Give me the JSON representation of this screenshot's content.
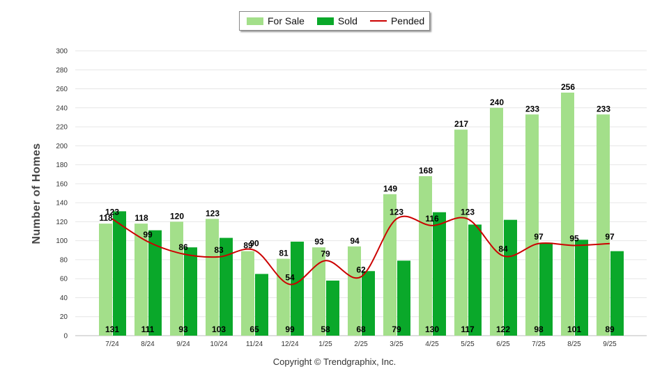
{
  "chart_data": {
    "type": "bar",
    "categories": [
      "7/24",
      "8/24",
      "9/24",
      "10/24",
      "11/24",
      "12/24",
      "1/25",
      "2/25",
      "3/25",
      "4/25",
      "5/25",
      "6/25",
      "7/25",
      "8/25",
      "9/25"
    ],
    "series": [
      {
        "name": "For Sale",
        "type": "bar",
        "color": "#a3df8a",
        "values": [
          118,
          118,
          120,
          123,
          89,
          81,
          93,
          94,
          149,
          168,
          217,
          240,
          233,
          256,
          233
        ]
      },
      {
        "name": "Sold",
        "type": "bar",
        "color": "#0aa82a",
        "values": [
          131,
          111,
          93,
          103,
          65,
          99,
          58,
          68,
          79,
          130,
          117,
          122,
          98,
          101,
          89
        ]
      },
      {
        "name": "Pended",
        "type": "line",
        "color": "#cc0000",
        "values": [
          123,
          99,
          86,
          83,
          90,
          54,
          79,
          62,
          123,
          116,
          123,
          84,
          97,
          95,
          97
        ]
      }
    ],
    "ylabel": "Number of Homes",
    "ylim": [
      0,
      300
    ],
    "yticks": [
      0,
      20,
      40,
      60,
      80,
      100,
      120,
      140,
      160,
      180,
      200,
      220,
      240,
      260,
      280,
      300
    ],
    "grid": true,
    "legend": "top-center"
  },
  "legend": {
    "for_sale": "For Sale",
    "sold": "Sold",
    "pended": "Pended"
  },
  "footer": "Copyright © Trendgraphix, Inc."
}
